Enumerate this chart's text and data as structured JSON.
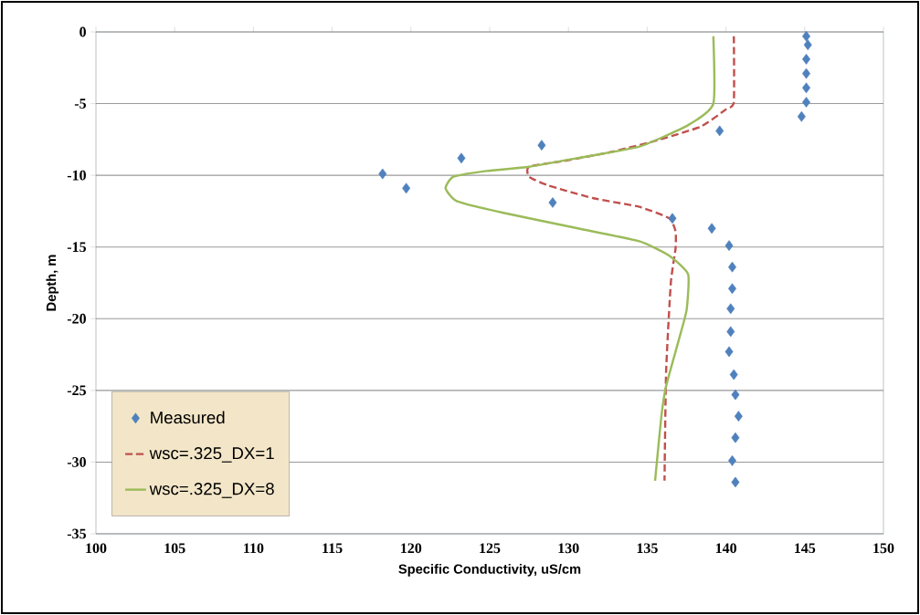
{
  "chart_data": {
    "type": "scatter",
    "xlabel": "Specific Conductivity, uS/cm",
    "ylabel": "Depth, m",
    "xlim": [
      100,
      150
    ],
    "xticks": [
      100,
      105,
      110,
      115,
      120,
      125,
      130,
      135,
      140,
      145,
      150
    ],
    "ylim": [
      -35,
      0
    ],
    "yticks": [
      -35,
      -30,
      -25,
      -20,
      -15,
      -10,
      -5,
      0
    ],
    "grid": "y",
    "legend": "bottom left",
    "series": [
      {
        "name": "Measured",
        "marker": "diamond",
        "color": "#4f81bd",
        "x": [
          145.1,
          145.2,
          145.1,
          145.1,
          145.1,
          145.1,
          144.8,
          139.6,
          128.3,
          123.2,
          118.2,
          119.7,
          129.0,
          136.6,
          139.1,
          140.2,
          140.4,
          140.4,
          140.3,
          140.3,
          140.2,
          140.5,
          140.6,
          140.8,
          140.6,
          140.4,
          140.6
        ],
        "values": [
          -0.3,
          -0.9,
          -1.9,
          -2.9,
          -3.9,
          -4.9,
          -5.9,
          -6.9,
          -7.9,
          -8.8,
          -9.9,
          -10.9,
          -11.9,
          -13.0,
          -13.7,
          -14.9,
          -16.4,
          -17.9,
          -19.3,
          -20.9,
          -22.3,
          -23.9,
          -25.3,
          -26.8,
          -28.3,
          -29.9,
          -31.4
        ]
      },
      {
        "name": "wsc=.325_DX=1",
        "type": "line",
        "line_style": "dashed",
        "color": "#c0504d",
        "x": [
          140.5,
          140.5,
          140.0,
          138.4,
          135.5,
          132.6,
          129.7,
          127.5,
          127.5,
          128.7,
          131.6,
          134.5,
          136.4,
          136.8,
          136.8,
          136.5,
          136.2,
          136.1
        ],
        "values": [
          -0.3,
          -4.9,
          -5.4,
          -6.6,
          -7.6,
          -8.4,
          -9.0,
          -9.4,
          -10.1,
          -10.7,
          -11.6,
          -12.2,
          -13.0,
          -13.9,
          -15.1,
          -17.5,
          -23.7,
          -31.3
        ]
      },
      {
        "name": "wsc=.325_DX=8",
        "type": "line",
        "line_style": "solid",
        "color": "#9bbb59",
        "x": [
          139.2,
          139.2,
          137.6,
          134.5,
          130.6,
          127.5,
          124.8,
          122.7,
          122.2,
          122.9,
          125.8,
          130.6,
          134.5,
          136.4,
          137.6,
          137.5,
          137.0,
          136.2,
          135.9,
          135.5
        ],
        "values": [
          -0.3,
          -5.0,
          -6.5,
          -8.0,
          -8.8,
          -9.4,
          -9.7,
          -10.1,
          -10.9,
          -11.8,
          -12.6,
          -13.7,
          -14.6,
          -15.6,
          -16.9,
          -19.4,
          -21.5,
          -24.7,
          -26.8,
          -31.3
        ]
      }
    ]
  }
}
